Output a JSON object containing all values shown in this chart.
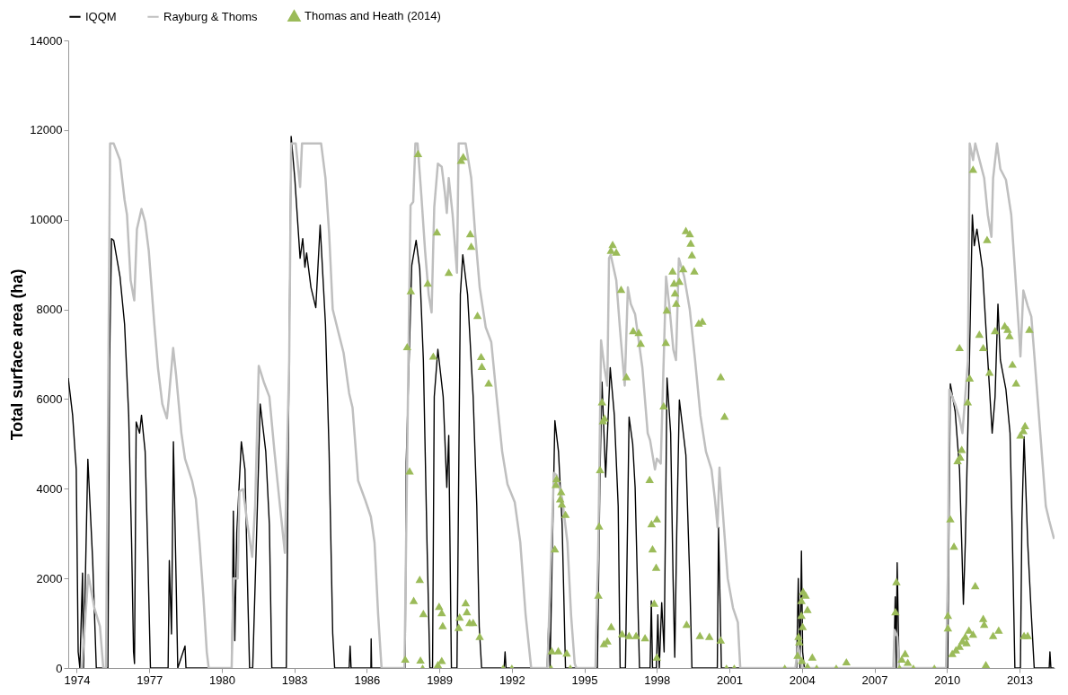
{
  "chart_data": {
    "type": "line",
    "ylabel": "Total surface area (ha)",
    "xlim": [
      1973.65,
      2014.45
    ],
    "xticks": [
      1974,
      1977,
      1980,
      1983,
      1986,
      1989,
      1992,
      1995,
      1998,
      2001,
      2004,
      2007,
      2010,
      2013
    ],
    "ylim": [
      0,
      14000
    ],
    "yticks": [
      0,
      2000,
      4000,
      6000,
      8000,
      10000,
      12000,
      14000
    ],
    "grid": false,
    "legend": "top",
    "line_style": "solid",
    "series": [
      {
        "name": "IQQM",
        "type": "line",
        "marker": "none",
        "color": "#000000",
        "x": [
          1973.65,
          1973.83,
          1973.98,
          1974.06,
          1974.13,
          1974.24,
          1974.28,
          1974.46,
          1974.66,
          1974.81,
          1975.29,
          1975.36,
          1975.44,
          1975.53,
          1975.79,
          1975.98,
          1976.15,
          1976.27,
          1976.35,
          1976.39,
          1976.46,
          1976.6,
          1976.68,
          1976.83,
          1976.93,
          1977.05,
          1977.78,
          1977.83,
          1977.92,
          1978.0,
          1978.11,
          1978.18,
          1978.48,
          1978.52,
          1980.42,
          1980.48,
          1980.54,
          1980.62,
          1980.81,
          1980.96,
          1981.06,
          1981.15,
          1981.28,
          1981.44,
          1981.59,
          1981.82,
          1981.97,
          1982.07,
          1982.67,
          1982.87,
          1983.02,
          1983.24,
          1983.35,
          1983.44,
          1983.51,
          1983.69,
          1983.89,
          1984.07,
          1984.29,
          1984.44,
          1984.59,
          1984.67,
          1985.27,
          1985.31,
          1985.35,
          1986.17,
          1986.18,
          1986.2,
          1987.59,
          1987.63,
          1987.86,
          1988.04,
          1988.19,
          1988.34,
          1988.49,
          1988.61,
          1988.72,
          1988.79,
          1988.94,
          1989.16,
          1989.31,
          1989.39,
          1989.5,
          1989.73,
          1989.87,
          1989.97,
          1990.17,
          1990.4,
          1990.55,
          1990.65,
          1990.75,
          1991.68,
          1991.72,
          1991.76,
          1993.46,
          1993.53,
          1993.58,
          1993.78,
          1993.93,
          1994.08,
          1994.22,
          1995.54,
          1995.65,
          1995.73,
          1995.88,
          1996.07,
          1996.24,
          1996.4,
          1996.48,
          1996.7,
          1996.85,
          1997.0,
          1997.1,
          1997.28,
          1997.72,
          1997.77,
          1997.82,
          1997.98,
          1998.04,
          1998.1,
          1998.2,
          1998.3,
          1998.42,
          1998.57,
          1998.67,
          1998.74,
          1998.82,
          1998.93,
          1999.2,
          1999.36,
          1999.45,
          2000.5,
          2000.55,
          2000.67,
          2003.78,
          2003.85,
          2003.92,
          2003.98,
          2004.03,
          2004.1,
          2007.8,
          2007.86,
          2007.9,
          2007.94,
          2008.02,
          2010.03,
          2010.14,
          2010.34,
          2010.52,
          2010.61,
          2010.68,
          2010.76,
          2010.93,
          2011.05,
          2011.13,
          2011.24,
          2011.47,
          2011.69,
          2011.87,
          2011.99,
          2012.11,
          2012.21,
          2012.44,
          2012.61,
          2012.71,
          2012.81,
          2013.04,
          2013.1,
          2013.19,
          2013.34,
          2013.49,
          2013.61,
          2014.23,
          2014.26,
          2014.3,
          2014.43
        ],
        "values": [
          6470,
          5640,
          4430,
          360,
          0,
          2120,
          0,
          4660,
          2400,
          0,
          0,
          6870,
          9580,
          9540,
          8730,
          7670,
          5640,
          2800,
          360,
          100,
          5490,
          5240,
          5640,
          4830,
          2800,
          0,
          0,
          2400,
          760,
          5050,
          2000,
          0,
          490,
          0,
          0,
          3500,
          610,
          3010,
          5050,
          4430,
          2000,
          0,
          0,
          2970,
          5890,
          4830,
          3200,
          0,
          0,
          11860,
          10930,
          9140,
          9580,
          8940,
          9260,
          8490,
          8040,
          9880,
          7670,
          4830,
          770,
          0,
          0,
          490,
          0,
          0,
          650,
          0,
          0,
          4590,
          8980,
          9540,
          8900,
          6870,
          2800,
          0,
          0,
          6050,
          7110,
          6050,
          4030,
          5190,
          0,
          0,
          8330,
          9220,
          8330,
          6050,
          3610,
          930,
          0,
          0,
          360,
          0,
          0,
          1100,
          0,
          5520,
          4830,
          3210,
          0,
          0,
          4430,
          6380,
          4260,
          6700,
          5640,
          3610,
          0,
          0,
          5600,
          5000,
          4030,
          0,
          0,
          1500,
          0,
          0,
          1190,
          0,
          1460,
          360,
          6470,
          5240,
          2000,
          240,
          2970,
          5980,
          4750,
          2000,
          0,
          0,
          3140,
          0,
          0,
          2000,
          0,
          2610,
          360,
          0,
          0,
          1590,
          0,
          2350,
          0,
          0,
          6340,
          5720,
          4430,
          2800,
          1420,
          2800,
          6870,
          10110,
          9420,
          9790,
          8900,
          6870,
          5240,
          6050,
          8120,
          6870,
          6210,
          5240,
          2800,
          0,
          0,
          3290,
          5160,
          2800,
          1190,
          0,
          0,
          360,
          0,
          0
        ]
      },
      {
        "name": "Rayburg & Thoms",
        "type": "line",
        "marker": "none",
        "color": "#bfbfbf",
        "x": [
          1974.21,
          1974.48,
          1974.73,
          1974.96,
          1975.1,
          1975.21,
          1975.29,
          1975.38,
          1975.53,
          1975.79,
          1975.98,
          1976.08,
          1976.23,
          1976.38,
          1976.49,
          1976.68,
          1976.83,
          1976.98,
          1977.21,
          1977.36,
          1977.54,
          1977.73,
          1977.81,
          1977.99,
          1978.11,
          1978.33,
          1978.48,
          1978.77,
          1978.93,
          1979.08,
          1979.24,
          1979.38,
          1979.46,
          1980.41,
          1980.48,
          1980.66,
          1980.73,
          1980.88,
          1981.06,
          1981.26,
          1981.38,
          1981.53,
          1981.74,
          1981.97,
          1982.18,
          1982.41,
          1982.61,
          1982.79,
          1982.87,
          1983.06,
          1983.24,
          1983.32,
          1984.11,
          1984.29,
          1984.44,
          1984.59,
          1984.81,
          1985.04,
          1985.27,
          1985.41,
          1985.64,
          1985.94,
          1986.17,
          1986.32,
          1986.47,
          1986.61,
          1987.56,
          1987.63,
          1987.74,
          1987.81,
          1987.92,
          1988.01,
          1988.1,
          1988.26,
          1988.41,
          1988.56,
          1988.68,
          1988.79,
          1988.94,
          1989.1,
          1989.23,
          1989.31,
          1989.39,
          1989.55,
          1989.73,
          1989.8,
          1990.09,
          1990.32,
          1990.48,
          1990.67,
          1990.92,
          1991.15,
          1991.37,
          1991.6,
          1991.82,
          1992.12,
          1992.35,
          1992.57,
          1992.8,
          1993.47,
          1993.74,
          1993.85,
          1994.08,
          1994.3,
          1994.45,
          1994.6,
          1994.67,
          1995.46,
          1995.58,
          1995.69,
          1995.83,
          1995.95,
          1996.02,
          1996.09,
          1996.32,
          1996.48,
          1996.67,
          1996.8,
          1996.92,
          1997.1,
          1997.4,
          1997.62,
          1997.72,
          1997.92,
          1998.0,
          1998.16,
          1998.38,
          1998.53,
          1998.68,
          1998.79,
          1998.91,
          1999.13,
          1999.36,
          1999.58,
          1999.8,
          2000.03,
          2000.26,
          2000.4,
          2000.51,
          2000.59,
          2000.71,
          2000.93,
          2001.15,
          2001.35,
          2001.45,
          2003.73,
          2003.85,
          2004.0,
          2007.78,
          2007.83,
          2007.95,
          2008.02,
          2009.96,
          2010.04,
          2010.1,
          2010.34,
          2010.52,
          2010.64,
          2010.87,
          2010.94,
          2011.08,
          2011.17,
          2011.54,
          2011.69,
          2011.84,
          2011.91,
          2012.07,
          2012.21,
          2012.44,
          2012.66,
          2012.81,
          2012.96,
          2013.04,
          2013.16,
          2013.34,
          2013.49,
          2013.63,
          2013.86,
          2014.09,
          2014.23,
          2014.43
        ],
        "values": [
          0,
          2080,
          1340,
          930,
          0,
          0,
          5240,
          11700,
          11700,
          11330,
          10440,
          10110,
          8650,
          8200,
          9790,
          10240,
          9950,
          9310,
          7670,
          6700,
          5890,
          5570,
          6020,
          7140,
          6540,
          5240,
          4670,
          4180,
          3770,
          2800,
          1590,
          360,
          0,
          0,
          2000,
          2000,
          3940,
          3990,
          3210,
          2480,
          3610,
          6740,
          6380,
          6050,
          4830,
          3610,
          2570,
          6870,
          11700,
          11700,
          10730,
          11700,
          11700,
          10930,
          9710,
          8000,
          7520,
          7030,
          6130,
          5810,
          4180,
          3740,
          3370,
          2800,
          1190,
          0,
          0,
          2970,
          7670,
          10320,
          10400,
          11700,
          11700,
          10520,
          9310,
          8330,
          7930,
          10280,
          11250,
          11180,
          10600,
          10150,
          10930,
          10110,
          8820,
          11700,
          11700,
          10930,
          9710,
          8490,
          7600,
          7270,
          6050,
          4830,
          4100,
          3700,
          2800,
          1190,
          0,
          0,
          4350,
          4300,
          3780,
          2800,
          1190,
          100,
          0,
          0,
          2800,
          7310,
          6700,
          6300,
          9140,
          9220,
          8650,
          7520,
          6300,
          8490,
          8120,
          7890,
          6700,
          5240,
          5080,
          4430,
          4670,
          4560,
          8730,
          8000,
          7100,
          6870,
          9140,
          8730,
          8000,
          6870,
          5640,
          4830,
          4430,
          3770,
          3140,
          4470,
          3610,
          2000,
          1340,
          1020,
          0,
          0,
          510,
          0,
          0,
          850,
          700,
          0,
          0,
          2080,
          6210,
          5890,
          5570,
          5240,
          6870,
          11700,
          11330,
          11700,
          10930,
          10110,
          9620,
          10930,
          11700,
          11130,
          10890,
          10110,
          8900,
          7670,
          6950,
          8420,
          8080,
          7840,
          6870,
          5240,
          3610,
          3290,
          2880
        ]
      },
      {
        "name": "Thomas and Heath (2014)",
        "type": "scatter",
        "marker": "triangle",
        "color": "#9bbb59",
        "x": [
          1988.12,
          1988.9,
          1989.39,
          1987.82,
          1988.52,
          1987.67,
          1988.75,
          1987.77,
          1988.19,
          1987.94,
          1988.34,
          1988.99,
          1989.1,
          1989.14,
          1987.59,
          1988.22,
          1988.31,
          1988.94,
          1989.1,
          1989.9,
          1989.99,
          1990.28,
          1990.32,
          1990.58,
          1990.73,
          1990.76,
          1991.04,
          1990.09,
          1990.14,
          1989.84,
          1989.8,
          1990.25,
          1990.4,
          1990.67,
          1991.64,
          1992.0,
          1993.85,
          1994.04,
          1994.0,
          1994.07,
          1994.22,
          1993.78,
          1993.82,
          1993.65,
          1993.92,
          1994.27,
          1993.62,
          1994.42,
          1996.17,
          1996.1,
          1996.32,
          1996.52,
          1997.02,
          1997.25,
          1997.33,
          1996.74,
          1995.73,
          1995.83,
          1995.77,
          1995.65,
          1995.61,
          1995.58,
          1996.11,
          1995.81,
          1995.95,
          1996.56,
          1996.85,
          1997.14,
          1999.2,
          1999.36,
          1999.4,
          1999.45,
          1999.55,
          1999.09,
          1998.65,
          1998.93,
          1998.71,
          1998.75,
          1998.8,
          1998.41,
          1998.37,
          1998.28,
          1999.73,
          1999.88,
          2000.64,
          2000.8,
          1997.7,
          1997.78,
          1998.0,
          1997.82,
          1997.97,
          1997.89,
          1998.0,
          1997.51,
          1999.23,
          1999.78,
          2000.17,
          2000.64,
          2000.88,
          2001.2,
          2003.29,
          2004.05,
          2004.15,
          2003.98,
          2004.23,
          2003.98,
          2004.03,
          2003.86,
          2003.89,
          2003.82,
          2004.0,
          2004.43,
          2004.23,
          2004.61,
          2005.42,
          2005.84,
          2007.91,
          2007.87,
          2008.27,
          2008.13,
          2008.38,
          2008.04,
          2008.61,
          2009.48,
          2011.08,
          2011.66,
          2010.52,
          2011.34,
          2011.99,
          2012.39,
          2012.51,
          2012.59,
          2013.41,
          2011.5,
          2012.71,
          2011.76,
          2012.86,
          2010.94,
          2010.86,
          2013.23,
          2013.16,
          2013.04,
          2010.61,
          2010.55,
          2010.44,
          2010.14,
          2010.29,
          2011.17,
          2010.04,
          2010.04,
          2011.5,
          2011.54,
          2010.91,
          2011.08,
          2010.76,
          2010.64,
          2010.81,
          2010.52,
          2010.37,
          2010.22,
          2012.14,
          2011.91,
          2011.61,
          2013.19,
          2013.34
        ],
        "values": [
          11480,
          9730,
          8830,
          8420,
          8590,
          7170,
          6960,
          4400,
          1980,
          1510,
          1220,
          1380,
          1240,
          950,
          200,
          180,
          0,
          80,
          170,
          11330,
          11410,
          9690,
          9410,
          7870,
          6950,
          6730,
          6360,
          1460,
          1260,
          1140,
          910,
          1020,
          1020,
          710,
          0,
          0,
          4230,
          3940,
          3780,
          3660,
          3430,
          2660,
          4100,
          390,
          390,
          340,
          0,
          0,
          9450,
          9320,
          9280,
          8450,
          7530,
          7490,
          7250,
          6500,
          5940,
          5580,
          5520,
          4430,
          3170,
          1630,
          930,
          550,
          610,
          770,
          730,
          730,
          9760,
          9690,
          9480,
          9220,
          8860,
          8910,
          8860,
          8630,
          8590,
          8370,
          8140,
          7990,
          7270,
          5850,
          7700,
          7740,
          6500,
          5620,
          4210,
          3220,
          3330,
          2660,
          2250,
          1450,
          250,
          680,
          980,
          730,
          710,
          630,
          0,
          0,
          0,
          1710,
          1630,
          1510,
          1310,
          1180,
          930,
          710,
          590,
          290,
          170,
          250,
          40,
          0,
          0,
          140,
          1930,
          1260,
          330,
          200,
          130,
          0,
          0,
          0,
          11130,
          9560,
          7150,
          7450,
          7530,
          7640,
          7560,
          7420,
          7560,
          7150,
          6780,
          6600,
          6360,
          6470,
          5940,
          5410,
          5300,
          5200,
          4880,
          4710,
          4630,
          3330,
          2720,
          1840,
          1180,
          900,
          1110,
          980,
          850,
          760,
          710,
          610,
          570,
          490,
          410,
          330,
          850,
          730,
          80,
          730,
          730
        ]
      }
    ]
  }
}
